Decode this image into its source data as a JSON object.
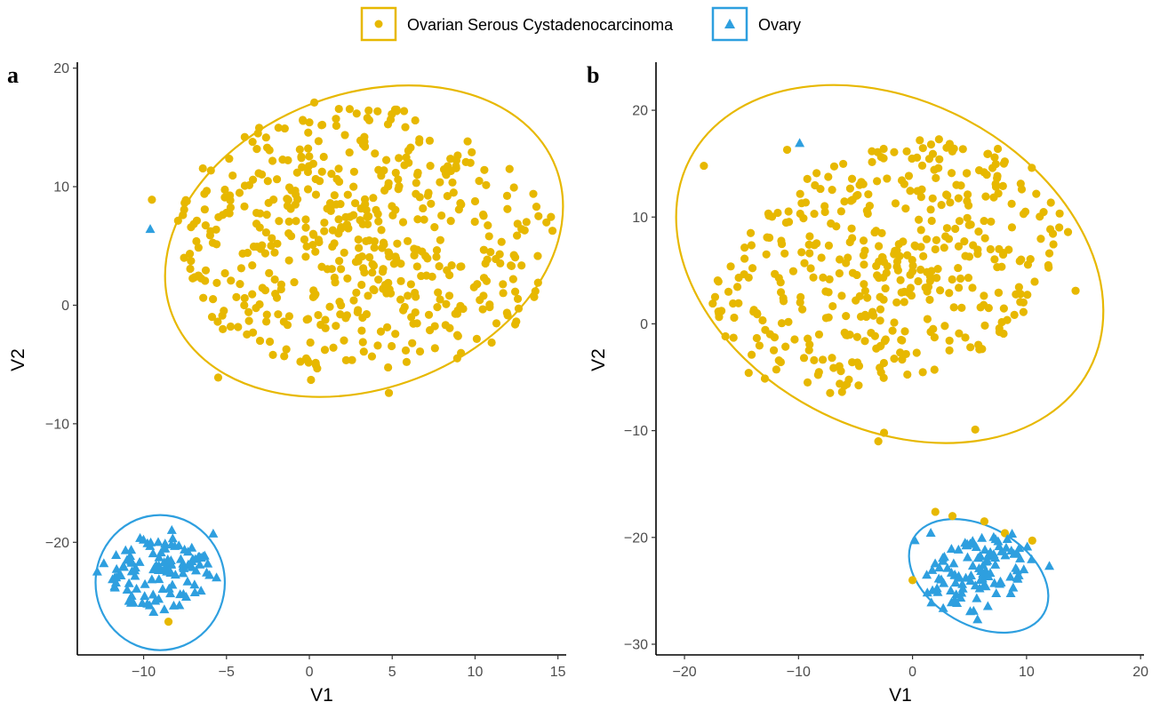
{
  "colors": {
    "serous": "#E7B800",
    "ovary": "#2E9FDF",
    "axis": "#000000",
    "tick_text": "#4d4d4d"
  },
  "legend": {
    "items": [
      {
        "label": "Ovarian Serous Cystadenocarcinoma",
        "shape": "circle",
        "color": "#E7B800"
      },
      {
        "label": "Ovary",
        "shape": "triangle",
        "color": "#2E9FDF"
      }
    ]
  },
  "chart_data": [
    {
      "type": "scatter",
      "panel_label": "a",
      "xlabel": "V1",
      "ylabel": "V2",
      "xlim": [
        -14,
        15.5
      ],
      "ylim": [
        -29.5,
        20.5
      ],
      "xticks": [
        -10,
        -5,
        0,
        5,
        10,
        15
      ],
      "xtick_labels": [
        "−10",
        "−5",
        "0",
        "5",
        "10",
        "15"
      ],
      "yticks": [
        -20,
        -10,
        0,
        10,
        20
      ],
      "ytick_labels": [
        "−20",
        "−10",
        "0",
        "10",
        "20"
      ],
      "ellipses": [
        {
          "series": "Ovarian Serous Cystadenocarcinoma",
          "center": [
            3.3,
            5.4
          ],
          "rx": 12.4,
          "ry": 12.4,
          "rotation_deg": -21
        },
        {
          "series": "Ovary",
          "center": [
            -9.0,
            -23.4
          ],
          "rx": 3.9,
          "ry": 5.7,
          "rotation_deg": 0
        }
      ],
      "series": [
        {
          "name": "Ovarian Serous Cystadenocarcinoma",
          "shape": "circle",
          "cluster": {
            "n": 520,
            "center": [
              3.3,
              5.4
            ],
            "rx": 11.6,
            "ry": 11.3,
            "rotation_deg": -21,
            "seed": 11
          },
          "extra_points": [
            [
              -9.5,
              8.9
            ],
            [
              0.3,
              17.1
            ],
            [
              3.5,
              15.8
            ],
            [
              9.8,
              12.9
            ],
            [
              13.8,
              1.9
            ],
            [
              -5.5,
              -6.1
            ],
            [
              4.8,
              -7.4
            ],
            [
              0.1,
              -6.3
            ],
            [
              12.3,
              2.2
            ],
            [
              -3.1,
              14.5
            ],
            [
              -8.5,
              -26.7
            ]
          ]
        },
        {
          "name": "Ovary",
          "shape": "triangle",
          "cluster": {
            "n": 115,
            "center": [
              -9.0,
              -22.6
            ],
            "rx": 3.1,
            "ry": 3.2,
            "rotation_deg": 0,
            "seed": 23
          },
          "extra_points": [
            [
              -9.6,
              6.4
            ],
            [
              -12.8,
              -22.5
            ],
            [
              -12.4,
              -21.8
            ],
            [
              -5.8,
              -19.3
            ],
            [
              -5.6,
              -23.0
            ],
            [
              -8.3,
              -19.0
            ],
            [
              -9.4,
              -25.9
            ]
          ]
        }
      ]
    },
    {
      "type": "scatter",
      "panel_label": "b",
      "xlabel": "V1",
      "ylabel": "V2",
      "xlim": [
        -22.5,
        20.3
      ],
      "ylim": [
        -31,
        24.5
      ],
      "xticks": [
        -20,
        -10,
        0,
        10,
        20
      ],
      "xtick_labels": [
        "−20",
        "−10",
        "0",
        "10",
        "20"
      ],
      "yticks": [
        -30,
        -20,
        -10,
        0,
        10,
        20
      ],
      "ytick_labels": [
        "−30",
        "−20",
        "−10",
        "0",
        "10",
        "20"
      ],
      "ellipses": [
        {
          "series": "Ovarian Serous Cystadenocarcinoma",
          "center": [
            -2.0,
            5.6
          ],
          "rx": 19.8,
          "ry": 15.3,
          "rotation_deg": 28
        },
        {
          "series": "Ovary",
          "center": [
            5.8,
            -23.6
          ],
          "rx": 6.6,
          "ry": 4.6,
          "rotation_deg": 30
        }
      ],
      "series": [
        {
          "name": "Ovarian Serous Cystadenocarcinoma",
          "shape": "circle",
          "cluster": {
            "n": 430,
            "center": [
              -2.0,
              5.3
            ],
            "rx": 16.6,
            "ry": 10.8,
            "rotation_deg": 25,
            "seed": 37
          },
          "extra_points": [
            [
              -18.3,
              14.8
            ],
            [
              -11.0,
              16.3
            ],
            [
              -3.0,
              -11.0
            ],
            [
              -2.5,
              -10.2
            ],
            [
              5.5,
              -9.9
            ],
            [
              14.3,
              3.1
            ],
            [
              12.0,
              6.6
            ],
            [
              2.0,
              -17.6
            ],
            [
              3.5,
              -18.0
            ],
            [
              6.3,
              -18.5
            ],
            [
              10.5,
              -20.3
            ],
            [
              0.0,
              -24.0
            ],
            [
              8.1,
              -19.6
            ]
          ]
        },
        {
          "name": "Ovary",
          "shape": "triangle",
          "cluster": {
            "n": 110,
            "center": [
              5.7,
              -23.3
            ],
            "rx": 5.2,
            "ry": 3.4,
            "rotation_deg": 30,
            "seed": 53
          },
          "extra_points": [
            [
              -9.9,
              16.9
            ],
            [
              12.0,
              -22.7
            ],
            [
              0.2,
              -20.3
            ],
            [
              1.6,
              -19.6
            ],
            [
              5.7,
              -27.7
            ],
            [
              1.3,
              -25.2
            ]
          ]
        }
      ]
    }
  ]
}
